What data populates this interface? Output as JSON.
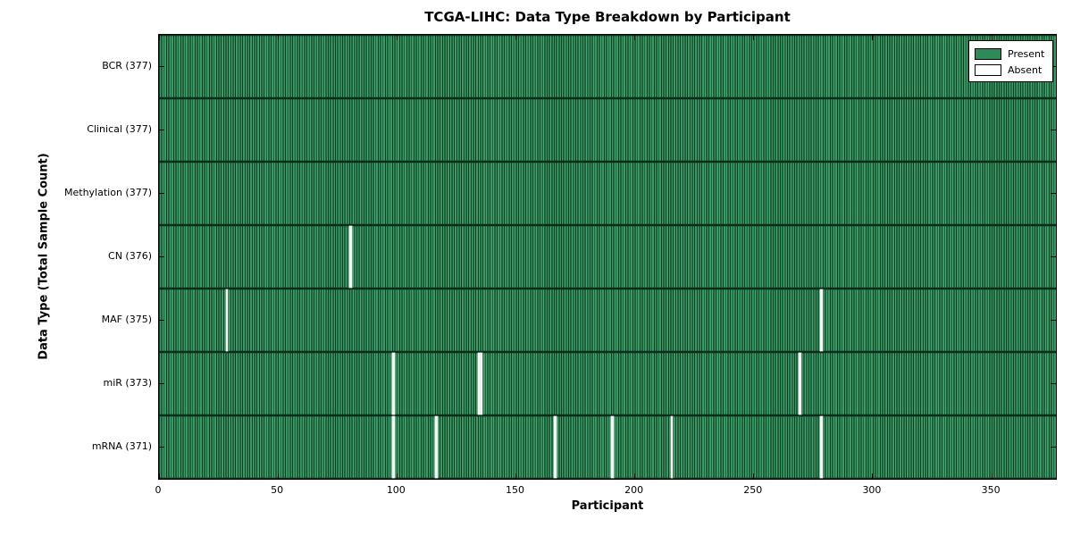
{
  "figure": {
    "background": "#ffffff"
  },
  "chart_data": {
    "type": "heatmap",
    "title": "TCGA-LIHC: Data Type Breakdown by Participant",
    "xlabel": "Participant",
    "ylabel": "Data Type (Total Sample Count)",
    "xlim": [
      0,
      377
    ],
    "n_participants": 377,
    "x_ticks": [
      0,
      50,
      100,
      150,
      200,
      250,
      300,
      350
    ],
    "grid": false,
    "rows": [
      {
        "data_type": "BCR",
        "label": "BCR (377)",
        "total_samples": 377,
        "absent_participants": []
      },
      {
        "data_type": "Clinical",
        "label": "Clinical (377)",
        "total_samples": 377,
        "absent_participants": []
      },
      {
        "data_type": "Methylation",
        "label": "Methylation (377)",
        "total_samples": 377,
        "absent_participants": []
      },
      {
        "data_type": "CN",
        "label": "CN (376)",
        "total_samples": 376,
        "absent_participants": [
          80
        ]
      },
      {
        "data_type": "MAF",
        "label": "MAF (375)",
        "total_samples": 375,
        "absent_participants": [
          28,
          278
        ]
      },
      {
        "data_type": "miR",
        "label": "miR (373)",
        "total_samples": 373,
        "absent_participants": [
          98,
          134,
          135,
          269
        ]
      },
      {
        "data_type": "mRNA",
        "label": "mRNA (371)",
        "total_samples": 371,
        "absent_participants": [
          98,
          116,
          166,
          190,
          215,
          278
        ]
      }
    ],
    "legend": {
      "position": "upper right",
      "entries": [
        {
          "label": "Present",
          "color": "#2e8b57"
        },
        {
          "label": "Absent",
          "color": "#ffffff"
        }
      ]
    },
    "colors": {
      "present": "#2e8b57",
      "present_stripe_light": "#44a876",
      "present_stripe_dark": "#0e3a22",
      "absent": "#ffffff",
      "axis_border": "#000000"
    }
  }
}
